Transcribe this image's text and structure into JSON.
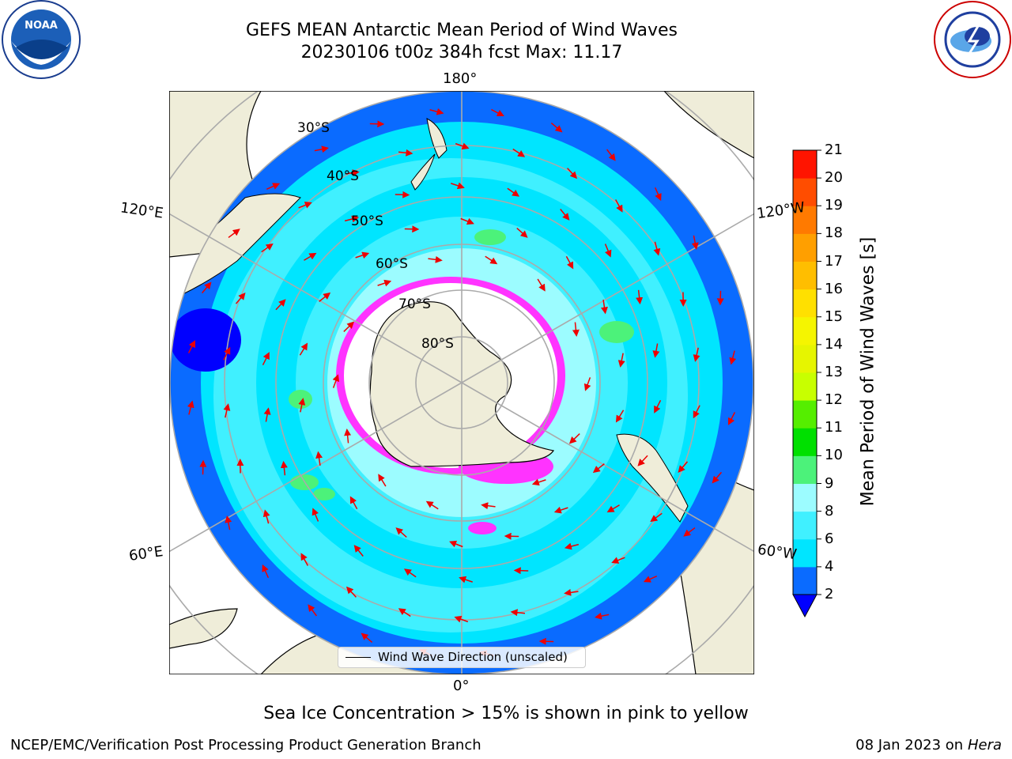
{
  "title": {
    "line1": "GEFS MEAN Antarctic Mean Period of Wind Waves",
    "line2": "20230106 t00z 384h fcst   Max: 11.17"
  },
  "logos": {
    "left": {
      "text": "NOAA",
      "ring": "NATIONAL OCEANIC AND ATMOSPHERIC ADMINISTRATION",
      "ring_bottom": "U.S. DEPARTMENT OF COMMERCE"
    },
    "right": {
      "ring": "NATIONAL WEATHER SERVICE"
    }
  },
  "map": {
    "projection": "south-polar-stereographic",
    "longitude_labels": [
      "180°",
      "120°E",
      "120°W",
      "60°E",
      "60°W",
      "0°"
    ],
    "latitude_labels": [
      "30°S",
      "40°S",
      "50°S",
      "60°S",
      "70°S",
      "80°S"
    ],
    "legend_text": "Wind Wave Direction (unscaled)",
    "arrow_color": "#ee0000",
    "land_color": "#efedd9",
    "sea_ice_colors": [
      "#ff33ff",
      "#ff99cc",
      "#ffcc66",
      "#ffffff"
    ]
  },
  "colorbar": {
    "label": "Mean Period of Wind Waves [s]",
    "ticks": [
      "2",
      "4",
      "6",
      "8",
      "9",
      "10",
      "11",
      "12",
      "13",
      "14",
      "15",
      "16",
      "17",
      "18",
      "19",
      "20",
      "21"
    ],
    "colors": [
      "#0a6bff",
      "#00e5ff",
      "#40f0ff",
      "#9cfcff",
      "#4cf27a",
      "#00e000",
      "#55ee00",
      "#c8ff00",
      "#e6f500",
      "#f5f500",
      "#ffe000",
      "#ffbe00",
      "#ff9f00",
      "#ff7a00",
      "#ff4d00",
      "#ff1400"
    ],
    "under_color": "#0000ff",
    "max_value": "11.17"
  },
  "caption": "Sea Ice Concentration > 15% is shown in pink to yellow",
  "footer": {
    "left": "NCEP/EMC/Verification Post Processing Product Generation Branch",
    "date": "08 Jan 2023 on",
    "host": "Hera"
  }
}
